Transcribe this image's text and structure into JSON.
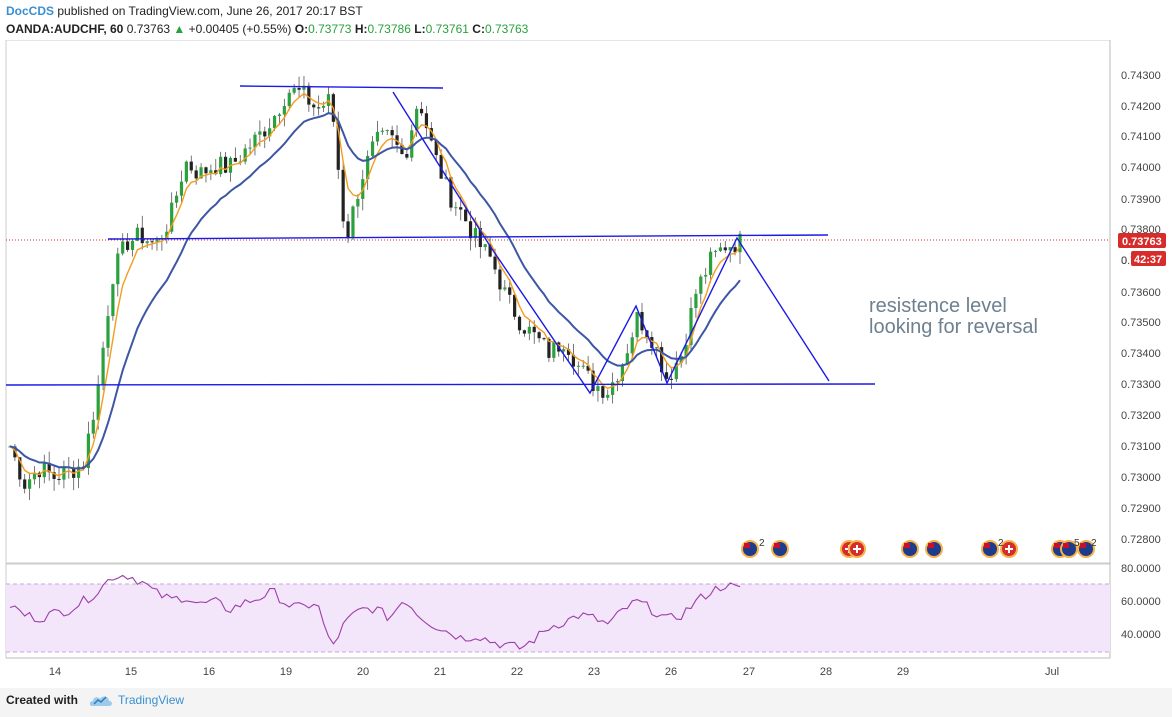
{
  "header": {
    "author": "DocCDS",
    "published_text": "published on TradingView.com, June 26, 2017 20:17 BST",
    "symbol": "OANDA:AUDCHF, 60",
    "last_price": "0.73763",
    "arrow": "▲",
    "change": "+0.00405 (+0.55%)",
    "o_label": "O:",
    "o_value": "0.73773",
    "h_label": "H:",
    "h_value": "0.73786",
    "l_label": "L:",
    "l_value": "0.73761",
    "c_label": "C:",
    "c_value": "0.73763"
  },
  "footer": {
    "created_with": "Created with",
    "brand": "TradingView",
    "logo_icon": "tradingview-cloud-logo-icon"
  },
  "annotation": {
    "line1": "resistence level",
    "line2": "looking for reversal"
  },
  "price_tag": "0.73763",
  "countdown_tag": "42:37",
  "colors": {
    "drawing": "#1a1ae6",
    "ma_fast": "#f39c1f",
    "ma_slow": "#3d57a5",
    "rsi_line": "#9c3fa8",
    "rsi_band": "#f3e5fa",
    "annotation_text": "#6d8191",
    "candle_up": "#2aa13c",
    "candle_down": "#222222",
    "price_tag_bg": "#d62c2c"
  },
  "chart_data": {
    "type": "candlestick",
    "price_axis": {
      "ticks": [
        "0.74300",
        "0.74200",
        "0.74100",
        "0.74000",
        "0.73900",
        "0.73800",
        "0.73700",
        "0.73600",
        "0.73500",
        "0.73400",
        "0.73300",
        "0.73200",
        "0.73100",
        "0.73000",
        "0.72900",
        "0.72800"
      ],
      "range": [
        0.7276,
        0.7434
      ]
    },
    "time_axis": {
      "labels": [
        "14",
        "15",
        "16",
        "19",
        "20",
        "21",
        "22",
        "23",
        "26",
        "27",
        "28",
        "29",
        "Jul"
      ]
    },
    "price_path": [
      0.731,
      0.7298,
      0.7303,
      0.73,
      0.7302,
      0.7304,
      0.7328,
      0.7365,
      0.7376,
      0.7378,
      0.7375,
      0.7384,
      0.7402,
      0.7398,
      0.7401,
      0.74,
      0.7405,
      0.741,
      0.7416,
      0.7425,
      0.7424,
      0.7419,
      0.7422,
      0.7376,
      0.7396,
      0.7408,
      0.741,
      0.7403,
      0.7423,
      0.7405,
      0.7392,
      0.7385,
      0.7376,
      0.737,
      0.7358,
      0.735,
      0.7345,
      0.734,
      0.7345,
      0.7335,
      0.733,
      0.7328,
      0.7338,
      0.7352,
      0.7345,
      0.7332,
      0.734,
      0.736,
      0.737,
      0.7375,
      0.7376
    ],
    "trendlines": [
      {
        "name": "top",
        "points": [
          [
            "16",
            "0.74270"
          ],
          [
            "20",
            "0.74260"
          ]
        ]
      },
      {
        "name": "resistance",
        "points": [
          [
            "14-15",
            "0.73765"
          ],
          [
            "27",
            "0.73775"
          ]
        ]
      },
      {
        "name": "support",
        "points": [
          [
            "14",
            "0.73300"
          ],
          [
            "29",
            "0.73300"
          ]
        ]
      }
    ],
    "rsi": {
      "levels": [
        "80.0000",
        "60.0000",
        "40.0000"
      ],
      "band": [
        30,
        70
      ],
      "values": [
        58,
        52,
        50,
        53,
        55,
        60,
        66,
        75,
        76,
        72,
        65,
        61,
        63,
        58,
        60,
        55,
        59,
        62,
        66,
        58,
        56,
        60,
        32,
        48,
        55,
        56,
        50,
        62,
        52,
        46,
        42,
        38,
        40,
        36,
        34,
        32,
        38,
        45,
        48,
        52,
        50,
        46,
        55,
        60,
        55,
        49,
        52,
        60,
        66,
        70,
        67
      ]
    },
    "events_icons": [
      "au-flag-icon",
      "au-flag-icon",
      "ch-flag-icon",
      "ch-flag-icon",
      "au-flag-icon",
      "au-flag-icon",
      "au-flag-icon",
      "ch-flag-icon",
      "au-flag-icon",
      "au-flag-icon",
      "au-flag-icon"
    ],
    "events_counts": [
      "2",
      "2",
      "5",
      "2"
    ]
  }
}
